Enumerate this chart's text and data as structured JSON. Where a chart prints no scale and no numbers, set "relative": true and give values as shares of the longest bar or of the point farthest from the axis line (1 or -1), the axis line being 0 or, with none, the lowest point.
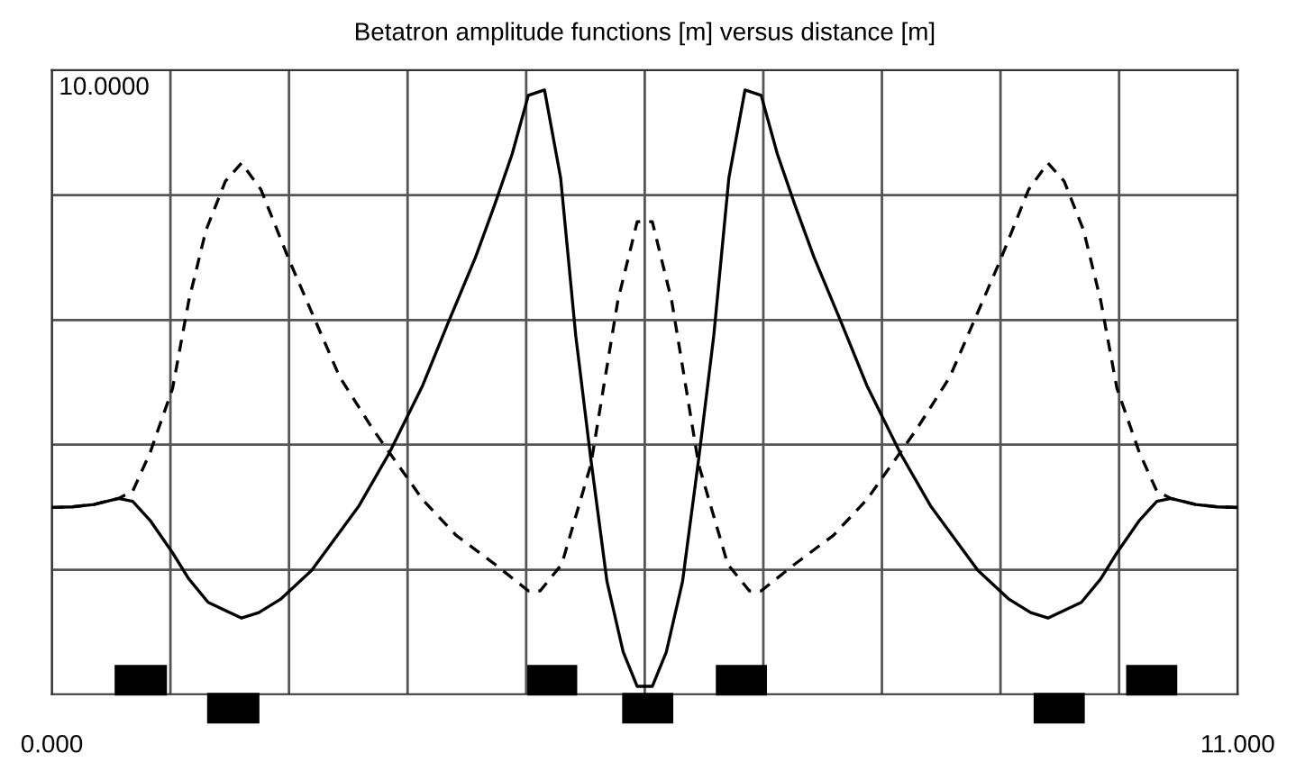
{
  "chart_data": {
    "type": "line",
    "title": "Betatron amplitude functions [m] versus distance [m]",
    "relative": true,
    "annotations": [
      "10.0000"
    ],
    "xlim": [
      0,
      11
    ],
    "xticks": [
      {
        "value": 0,
        "label": "0.000"
      },
      {
        "value": 1.1,
        "label": null
      },
      {
        "value": 2.2,
        "label": null
      },
      {
        "value": 3.3,
        "label": null
      },
      {
        "value": 4.4,
        "label": null
      },
      {
        "value": 5.5,
        "label": null
      },
      {
        "value": 6.6,
        "label": null
      },
      {
        "value": 7.7,
        "label": null
      },
      {
        "value": 8.8,
        "label": null
      },
      {
        "value": 9.9,
        "label": null
      },
      {
        "value": 11,
        "label": "11.000"
      }
    ],
    "grid": "x",
    "marker": "none",
    "ref_lines": [
      {
        "axis": "y",
        "value": 0.206,
        "label": null,
        "color": "#555555"
      },
      {
        "axis": "y",
        "value": 0.413,
        "label": null,
        "color": "#555555"
      },
      {
        "axis": "y",
        "value": 0.619,
        "label": null,
        "color": "#555555"
      },
      {
        "axis": "y",
        "value": 0.826,
        "label": null,
        "color": "#555555"
      }
    ],
    "series": [
      {
        "color": "#000000",
        "line_style": "solid",
        "x": [
          0,
          0.19,
          0.39,
          0.62,
          0.75,
          0.91,
          1.12,
          1.27,
          1.45,
          1.76,
          1.92,
          2.12,
          2.41,
          2.85,
          3.13,
          3.44,
          3.67,
          3.93,
          4.11,
          4.27,
          4.42,
          4.57,
          4.72,
          4.86,
          5.0,
          5.15,
          5.3,
          5.43,
          5.57,
          5.7,
          5.85,
          6.0,
          6.14,
          6.28,
          6.43,
          6.58,
          6.73,
          6.89,
          7.07,
          7.33,
          7.56,
          7.87,
          8.15,
          8.59,
          8.88,
          9.08,
          9.24,
          9.55,
          9.73,
          9.88,
          10.09,
          10.25,
          10.38,
          10.61,
          10.81,
          11.0
        ],
        "values": [
          0.309,
          0.31,
          0.314,
          0.324,
          0.319,
          0.288,
          0.234,
          0.191,
          0.152,
          0.126,
          0.135,
          0.157,
          0.205,
          0.312,
          0.399,
          0.511,
          0.612,
          0.723,
          0.811,
          0.894,
          0.991,
          1.0,
          0.854,
          0.593,
          0.389,
          0.186,
          0.07,
          0.013,
          0.013,
          0.07,
          0.186,
          0.389,
          0.593,
          0.854,
          1.0,
          0.991,
          0.894,
          0.811,
          0.723,
          0.612,
          0.511,
          0.399,
          0.312,
          0.205,
          0.157,
          0.135,
          0.126,
          0.152,
          0.191,
          0.234,
          0.288,
          0.319,
          0.324,
          0.314,
          0.31,
          0.309
        ]
      },
      {
        "color": "#000000",
        "line_style": "dashed",
        "x": [
          0,
          0.19,
          0.39,
          0.62,
          0.75,
          0.91,
          1.12,
          1.27,
          1.43,
          1.61,
          1.76,
          1.94,
          2.2,
          2.67,
          2.98,
          3.44,
          3.75,
          4.11,
          4.42,
          4.53,
          4.73,
          5.0,
          5.25,
          5.43,
          5.57,
          5.75,
          6.0,
          6.27,
          6.47,
          6.58,
          6.89,
          7.25,
          7.56,
          8.02,
          8.33,
          8.8,
          9.06,
          9.24,
          9.39,
          9.57,
          9.73,
          9.88,
          10.09,
          10.25,
          10.38,
          10.61,
          10.81,
          11.0
        ],
        "values": [
          0.309,
          0.31,
          0.314,
          0.324,
          0.336,
          0.399,
          0.506,
          0.651,
          0.768,
          0.849,
          0.879,
          0.835,
          0.719,
          0.525,
          0.438,
          0.322,
          0.263,
          0.215,
          0.171,
          0.171,
          0.215,
          0.38,
          0.651,
          0.782,
          0.782,
          0.651,
          0.38,
          0.215,
          0.171,
          0.171,
          0.215,
          0.263,
          0.322,
          0.438,
          0.525,
          0.719,
          0.835,
          0.879,
          0.849,
          0.768,
          0.651,
          0.506,
          0.399,
          0.336,
          0.324,
          0.314,
          0.31,
          0.309
        ]
      }
    ]
  }
}
